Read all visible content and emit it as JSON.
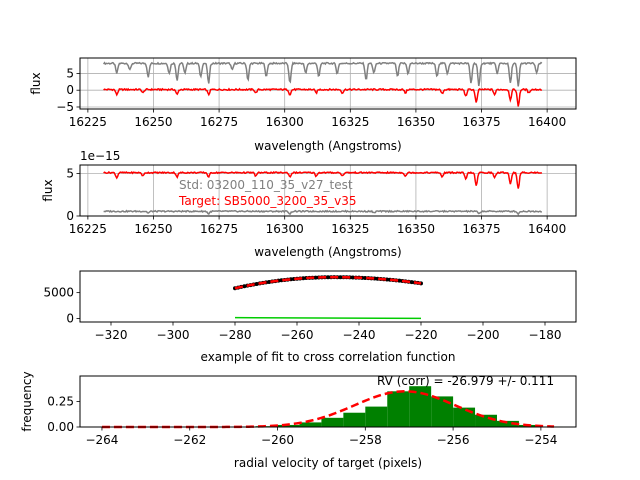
{
  "chart_data": [
    {
      "type": "line",
      "xlabel": "wavelength (Angstroms)",
      "ylabel": "flux",
      "xlim": [
        16222,
        16411
      ],
      "ylim": [
        -5.6,
        9.6
      ],
      "xticks": [
        16225,
        16250,
        16275,
        16300,
        16325,
        16350,
        16375,
        16400
      ],
      "yticks": [
        -5,
        0,
        5
      ],
      "grid": true,
      "colors": {
        "std": "#808080",
        "target": "#ff0000"
      },
      "series": [
        {
          "color": "#808080",
          "x_range": [
            16231,
            16398
          ],
          "baseline": 8.0,
          "absorption_lines": [
            [
              16236,
              3
            ],
            [
              16241,
              2
            ],
            [
              16248,
              4
            ],
            [
              16256,
              3
            ],
            [
              16259,
              5
            ],
            [
              16262,
              3
            ],
            [
              16268,
              4
            ],
            [
              16271,
              6
            ],
            [
              16280,
              2
            ],
            [
              16286,
              5
            ],
            [
              16293,
              4
            ],
            [
              16302,
              6
            ],
            [
              16308,
              3
            ],
            [
              16313,
              4
            ],
            [
              16320,
              3
            ],
            [
              16331,
              5
            ],
            [
              16334,
              3
            ],
            [
              16343,
              4
            ],
            [
              16347,
              3
            ],
            [
              16358,
              4
            ],
            [
              16362,
              3
            ],
            [
              16371,
              6
            ],
            [
              16374,
              7
            ],
            [
              16381,
              3
            ],
            [
              16386,
              6
            ],
            [
              16389,
              7
            ],
            [
              16396,
              3
            ]
          ]
        },
        {
          "color": "#ff0000",
          "x_range": [
            16231,
            16398
          ],
          "baseline": 0.2,
          "absorption_lines": [
            [
              16236,
              1.5
            ],
            [
              16246,
              1
            ],
            [
              16259,
              1.5
            ],
            [
              16271,
              1.5
            ],
            [
              16289,
              1
            ],
            [
              16302,
              1.5
            ],
            [
              16312,
              1
            ],
            [
              16322,
              1
            ],
            [
              16346,
              1
            ],
            [
              16360,
              1.2
            ],
            [
              16369,
              2
            ],
            [
              16373,
              4
            ],
            [
              16380,
              1.5
            ],
            [
              16386,
              3
            ],
            [
              16389,
              5
            ],
            [
              16393,
              1
            ]
          ]
        }
      ]
    },
    {
      "type": "line",
      "xlabel": "wavelength (Angstroms)",
      "ylabel": "flux",
      "offset_text": "1e−15",
      "xlim": [
        16222,
        16411
      ],
      "ylim": [
        0,
        6.0
      ],
      "xticks": [
        16225,
        16250,
        16275,
        16300,
        16325,
        16350,
        16375,
        16400
      ],
      "yticks": [
        0,
        5
      ],
      "grid": true,
      "annotations": [
        {
          "text": "Std: 03200_110_35_v27_test",
          "color": "#808080"
        },
        {
          "text": "Target: SB5000_3200_35_v35",
          "color": "#ff0000"
        }
      ],
      "series": [
        {
          "color": "#808080",
          "x_range": [
            16231,
            16398
          ],
          "baseline": 0.55,
          "absorption_lines": [
            [
              16248,
              0.2
            ],
            [
              16271,
              0.3
            ],
            [
              16302,
              0.3
            ],
            [
              16334,
              0.2
            ],
            [
              16374,
              0.3
            ],
            [
              16389,
              0.3
            ]
          ]
        },
        {
          "color": "#ff0000",
          "x_range": [
            16231,
            16398
          ],
          "baseline": 5.1,
          "absorption_lines": [
            [
              16236,
              0.6
            ],
            [
              16246,
              0.4
            ],
            [
              16259,
              0.5
            ],
            [
              16271,
              0.5
            ],
            [
              16289,
              0.4
            ],
            [
              16302,
              0.5
            ],
            [
              16312,
              0.4
            ],
            [
              16322,
              0.4
            ],
            [
              16346,
              0.4
            ],
            [
              16360,
              0.5
            ],
            [
              16369,
              0.8
            ],
            [
              16373,
              1.6
            ],
            [
              16380,
              0.6
            ],
            [
              16386,
              1.3
            ],
            [
              16389,
              1.9
            ]
          ]
        }
      ]
    },
    {
      "type": "line",
      "xlabel": "example of fit to cross correlation function",
      "xlim": [
        -330,
        -170
      ],
      "ylim": [
        -700,
        9200
      ],
      "xticks": [
        -320,
        -300,
        -280,
        -260,
        -240,
        -220,
        -200,
        -180
      ],
      "yticks": [
        0,
        5000
      ],
      "grid": false,
      "data_curve": {
        "color": "#000000",
        "x_range": [
          -280,
          -220
        ],
        "peak_x": -248,
        "peak_y": 8000,
        "end_y_left": 5850,
        "end_y_right": 6800
      },
      "fit_curve": {
        "color": "#ff0000",
        "style": "dashed",
        "x_range": [
          -280,
          -220
        ],
        "peak_x": -248,
        "peak_y": 8000,
        "end_y_left": 5850,
        "end_y_right": 6800
      },
      "residual": {
        "color": "#00cc00",
        "x_range": [
          -280,
          -220
        ],
        "y_left": 150,
        "y_right": 0
      }
    },
    {
      "type": "bar",
      "xlabel": "radial velocity of target (pixels)",
      "ylabel": "frequency",
      "xlim": [
        -264.5,
        -253.2
      ],
      "ylim": [
        0,
        0.5
      ],
      "xticks": [
        -264,
        -262,
        -260,
        -258,
        -256,
        -254
      ],
      "yticks": [
        0.0,
        0.25
      ],
      "ytick_labels": [
        "0.00",
        "0.25"
      ],
      "annotation": "RV (corr) = -26.979 +/- 0.111",
      "bar_color": "#008000",
      "bins": [
        -261.0,
        -260.5,
        -260.0,
        -259.5,
        -259.0,
        -258.5,
        -258.0,
        -257.5,
        -257.0,
        -256.5,
        -256.0,
        -255.5,
        -255.0,
        -254.5,
        -254.0
      ],
      "values": [
        0.004,
        0.008,
        0.02,
        0.045,
        0.09,
        0.14,
        0.2,
        0.35,
        0.4,
        0.3,
        0.19,
        0.12,
        0.06,
        0.02,
        0.005
      ],
      "gaussian_fit": {
        "color": "#ff0000",
        "style": "dashed",
        "mean": -257.1,
        "sigma": 1.15,
        "amplitude": 0.35,
        "x_range": [
          -264,
          -253.7
        ]
      }
    }
  ]
}
